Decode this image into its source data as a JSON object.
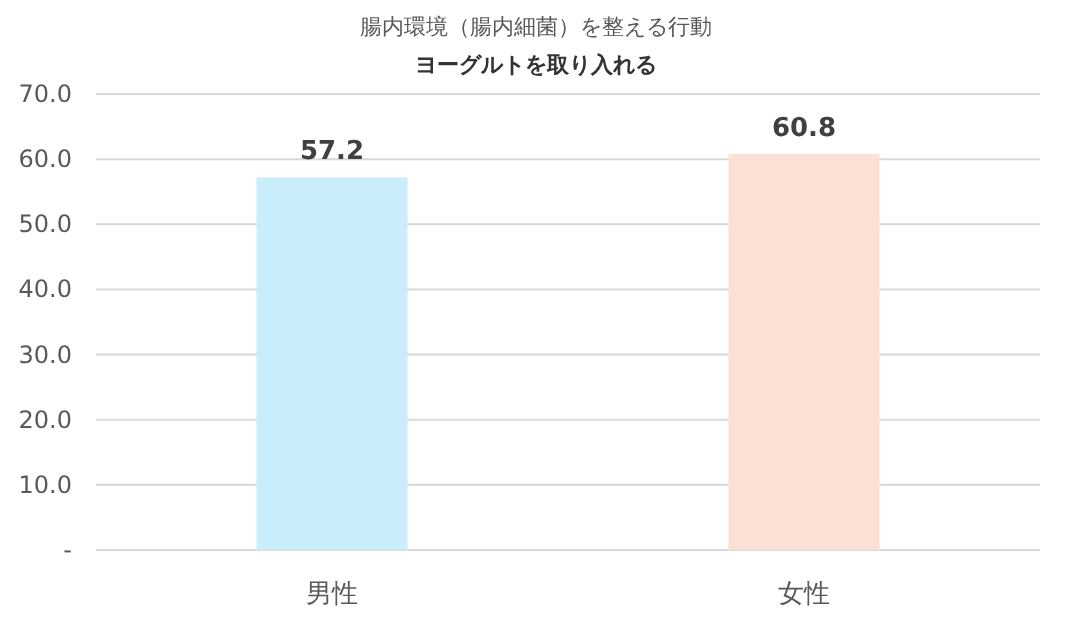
{
  "chart_data": {
    "type": "bar",
    "title": "腸内環境（腸内細菌）を整える行動",
    "subtitle": "ヨーグルトを取り入れる",
    "categories": [
      "男性",
      "女性"
    ],
    "values": [
      57.2,
      60.8
    ],
    "colors": [
      "#c9edfb",
      "#fbe1d5"
    ],
    "ylim": [
      0,
      70
    ],
    "yticks": [
      {
        "value": 0,
        "label": "-"
      },
      {
        "value": 10,
        "label": "10.0"
      },
      {
        "value": 20,
        "label": "20.0"
      },
      {
        "value": 30,
        "label": "30.0"
      },
      {
        "value": 40,
        "label": "40.0"
      },
      {
        "value": 50,
        "label": "50.0"
      },
      {
        "value": 60,
        "label": "60.0"
      },
      {
        "value": 70,
        "label": "70.0"
      }
    ],
    "grid": "y",
    "data_labels": true
  }
}
